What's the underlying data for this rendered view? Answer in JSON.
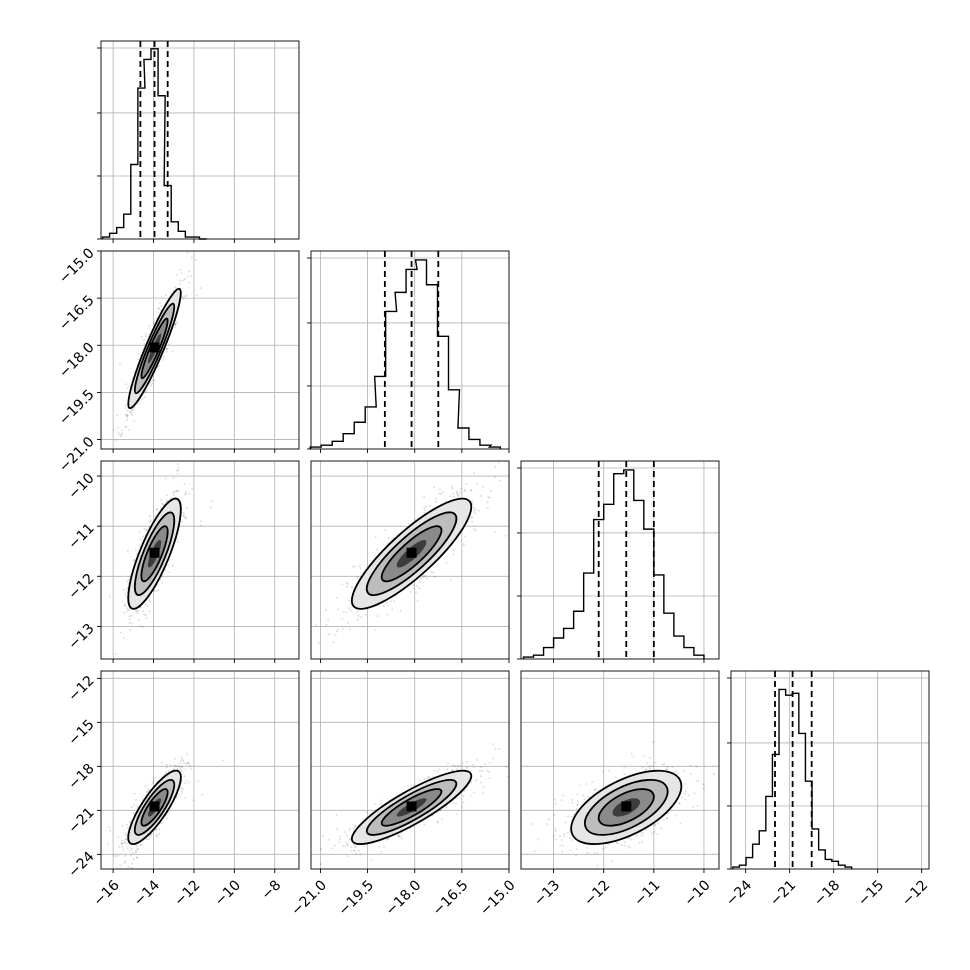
{
  "chart_data": {
    "type": "corner",
    "grid": true,
    "quantile_lines": "dashed",
    "parameters": [
      {
        "range": [
          -16.6,
          -6.8
        ],
        "ticks": [
          -16,
          -14,
          -12,
          -10,
          -8
        ],
        "tick_labels": [
          "−16",
          "−14",
          "−12",
          "−10",
          "−8"
        ],
        "quantiles": [
          -14.65,
          -13.95,
          -13.3
        ],
        "hist_max": 1.0,
        "hist": [
          [
            -16.35,
            0.01
          ],
          [
            -16.0,
            0.03
          ],
          [
            -15.65,
            0.06
          ],
          [
            -15.3,
            0.13
          ],
          [
            -14.95,
            0.39
          ],
          [
            -14.6,
            0.79
          ],
          [
            -14.3,
            0.94
          ],
          [
            -13.95,
            0.996
          ],
          [
            -13.6,
            0.75
          ],
          [
            -13.3,
            0.28
          ],
          [
            -12.95,
            0.09
          ],
          [
            -12.6,
            0.04
          ],
          [
            -12.25,
            0.01
          ],
          [
            -11.9,
            0.01
          ],
          [
            -11.55,
            0.0
          ]
        ]
      },
      {
        "range": [
          -21.3,
          -15.0
        ],
        "ticks": [
          -21.0,
          -19.5,
          -18.0,
          -16.5,
          -15.0
        ],
        "tick_labels": [
          "−21.0",
          "−19.5",
          "−18.0",
          "−16.5",
          "−15.0"
        ],
        "quantiles": [
          -18.95,
          -18.1,
          -17.25
        ],
        "hist_max": 1.0,
        "hist": [
          [
            -21.15,
            0.01
          ],
          [
            -20.8,
            0.02
          ],
          [
            -20.45,
            0.04
          ],
          [
            -20.1,
            0.08
          ],
          [
            -19.75,
            0.14
          ],
          [
            -19.4,
            0.22
          ],
          [
            -19.1,
            0.38
          ],
          [
            -18.75,
            0.72
          ],
          [
            -18.45,
            0.82
          ],
          [
            -18.1,
            0.94
          ],
          [
            -17.8,
            0.99
          ],
          [
            -17.45,
            0.86
          ],
          [
            -17.1,
            0.59
          ],
          [
            -16.75,
            0.31
          ],
          [
            -16.45,
            0.11
          ],
          [
            -16.1,
            0.05
          ],
          [
            -15.75,
            0.02
          ],
          [
            -15.45,
            0.01
          ]
        ]
      },
      {
        "range": [
          -13.65,
          -9.7
        ],
        "ticks": [
          -13,
          -12,
          -11,
          -10
        ],
        "tick_labels": [
          "−13",
          "−12",
          "−11",
          "−10"
        ],
        "quantiles": [
          -12.1,
          -11.55,
          -11.0
        ],
        "hist_max": 1.0,
        "hist": [
          [
            -13.5,
            0.01
          ],
          [
            -13.3,
            0.02
          ],
          [
            -13.1,
            0.06
          ],
          [
            -12.9,
            0.11
          ],
          [
            -12.7,
            0.16
          ],
          [
            -12.5,
            0.25
          ],
          [
            -12.3,
            0.45
          ],
          [
            -12.1,
            0.73
          ],
          [
            -11.9,
            0.81
          ],
          [
            -11.7,
            0.97
          ],
          [
            -11.5,
            0.99
          ],
          [
            -11.3,
            0.83
          ],
          [
            -11.1,
            0.68
          ],
          [
            -10.9,
            0.44
          ],
          [
            -10.7,
            0.24
          ],
          [
            -10.5,
            0.12
          ],
          [
            -10.3,
            0.06
          ],
          [
            -10.1,
            0.02
          ]
        ]
      },
      {
        "range": [
          -25.0,
          -11.5
        ],
        "ticks": [
          -24,
          -21,
          -18,
          -15,
          -12
        ],
        "tick_labels": [
          "−24",
          "−21",
          "−18",
          "−15",
          "−12"
        ],
        "quantiles": [
          -22.0,
          -20.8,
          -19.5
        ],
        "hist_max": 1.0,
        "hist": [
          [
            -24.65,
            0.01
          ],
          [
            -24.2,
            0.02
          ],
          [
            -23.75,
            0.06
          ],
          [
            -23.3,
            0.13
          ],
          [
            -22.85,
            0.2
          ],
          [
            -22.4,
            0.38
          ],
          [
            -21.95,
            0.6
          ],
          [
            -21.5,
            0.94
          ],
          [
            -21.05,
            0.91
          ],
          [
            -20.6,
            0.92
          ],
          [
            -20.15,
            0.71
          ],
          [
            -19.7,
            0.46
          ],
          [
            -19.25,
            0.21
          ],
          [
            -18.8,
            0.1
          ],
          [
            -18.35,
            0.05
          ],
          [
            -17.9,
            0.04
          ],
          [
            -17.45,
            0.02
          ],
          [
            -17.0,
            0.01
          ]
        ]
      }
    ],
    "pairs": [
      {
        "row": 1,
        "col": 0,
        "mean": [
          -13.95,
          -18.1
        ],
        "sd": [
          0.65,
          0.95
        ],
        "corr": 0.93
      },
      {
        "row": 2,
        "col": 0,
        "mean": [
          -13.95,
          -11.55
        ],
        "sd": [
          0.65,
          0.55
        ],
        "corr": 0.8
      },
      {
        "row": 2,
        "col": 1,
        "mean": [
          -18.1,
          -11.55
        ],
        "sd": [
          0.95,
          0.55
        ],
        "corr": 0.85
      },
      {
        "row": 3,
        "col": 0,
        "mean": [
          -13.95,
          -20.8
        ],
        "sd": [
          0.65,
          1.25
        ],
        "corr": 0.82
      },
      {
        "row": 3,
        "col": 1,
        "mean": [
          -18.1,
          -20.8
        ],
        "sd": [
          0.95,
          1.25
        ],
        "corr": 0.86
      },
      {
        "row": 3,
        "col": 2,
        "mean": [
          -11.55,
          -20.8
        ],
        "sd": [
          0.55,
          1.25
        ],
        "corr": 0.58
      }
    ],
    "contour_levels_sigma": [
      0.5,
      1.0,
      1.5,
      2.0
    ]
  }
}
